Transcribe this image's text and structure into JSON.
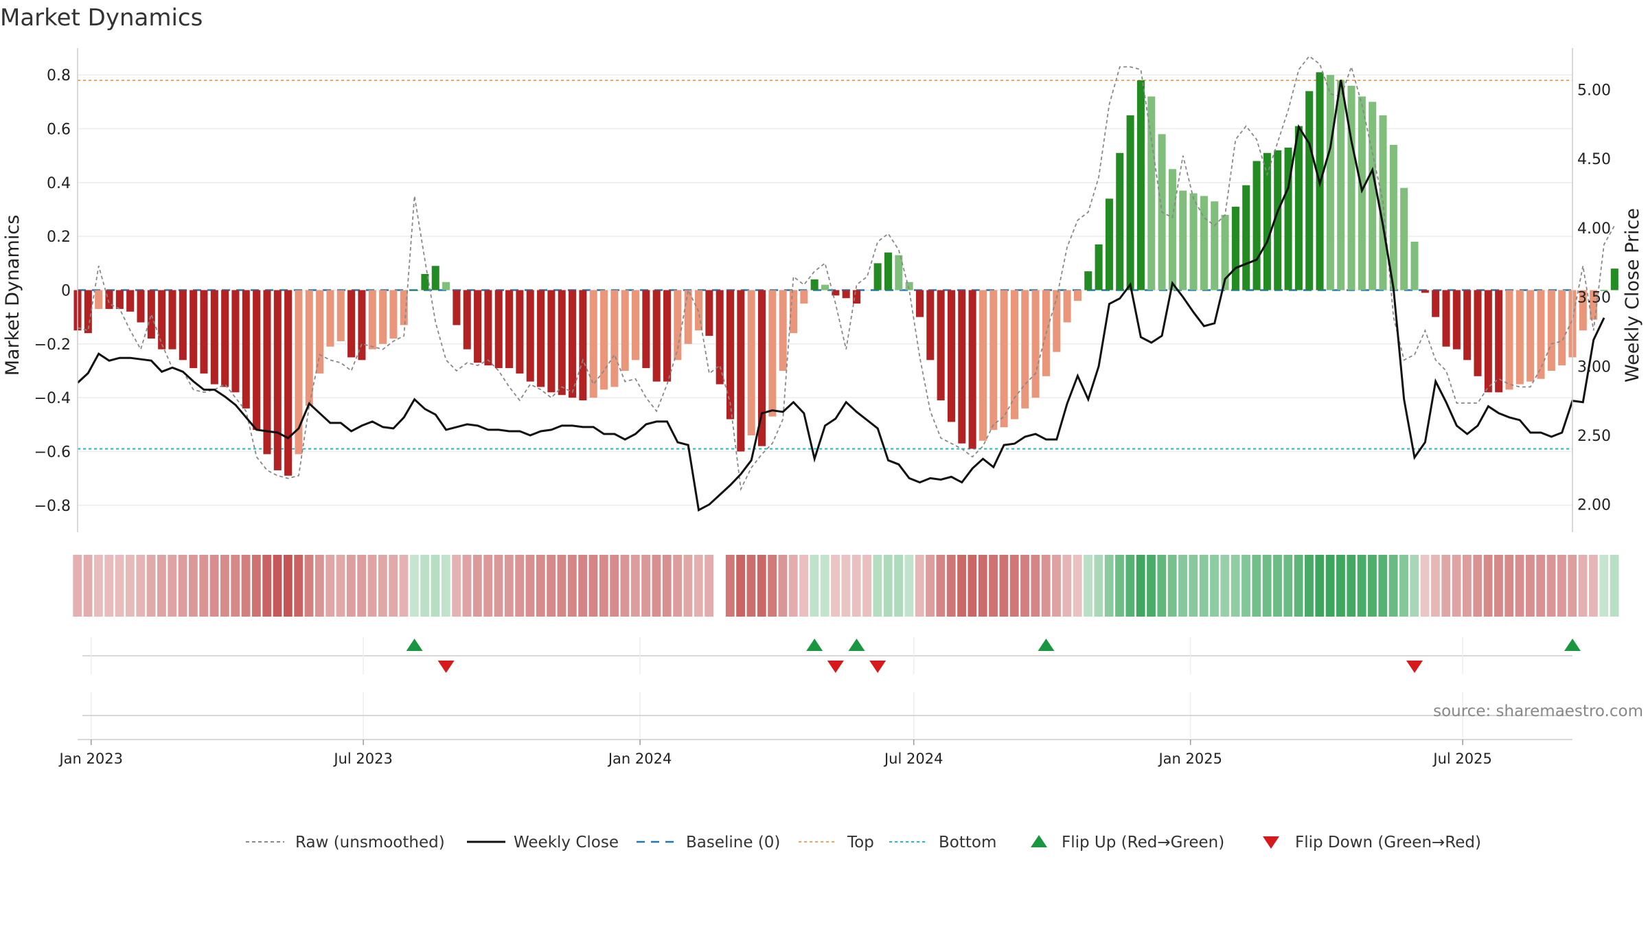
{
  "chart_data": {
    "type": "bar",
    "title": "Market Dynamics",
    "ylabel_left": "Market Dynamics",
    "ylabel_right": "Weekly Close Price",
    "ylim_left": [
      -0.9,
      0.9
    ],
    "ylim_right": [
      1.8,
      5.3
    ],
    "yticks_left": [
      0.8,
      0.6,
      0.4,
      0.2,
      0,
      -0.2,
      -0.4,
      -0.6,
      -0.8
    ],
    "ytick_labels_left": [
      "0.8",
      "0.6",
      "0.4",
      "0.2",
      "0",
      "−0.2",
      "−0.4",
      "−0.6",
      "−0.8"
    ],
    "yticks_right": [
      5.0,
      4.5,
      4.0,
      3.5,
      3.0,
      2.5,
      2.0
    ],
    "ytick_labels_right": [
      "5.00",
      "4.50",
      "4.00",
      "3.50",
      "3.00",
      "2.50",
      "2.00"
    ],
    "x_start": "2022-12-23",
    "x_end": "2025-09-12",
    "x_ticks": [
      {
        "date": "2023-01-01",
        "label": "Jan 2023"
      },
      {
        "date": "2023-07-01",
        "label": "Jul 2023"
      },
      {
        "date": "2024-01-01",
        "label": "Jan 2024"
      },
      {
        "date": "2024-07-01",
        "label": "Jul 2024"
      },
      {
        "date": "2025-01-01",
        "label": "Jan 2025"
      },
      {
        "date": "2025-07-01",
        "label": "Jul 2025"
      }
    ],
    "thresholds": {
      "baseline": 0,
      "top": 0.78,
      "bottom": -0.59
    },
    "start_date": "2022-12-23",
    "grid": true,
    "legend_position": "bottom-center",
    "legend": [
      "Raw (unsmoothed)",
      "Weekly Close",
      "Baseline (0)",
      "Top",
      "Bottom",
      "Flip Up (Red→Green)",
      "Flip Down (Green→Red)"
    ],
    "colors": {
      "strong_green": "#228b22",
      "light_green": "#7fbf7b",
      "strong_red": "#b22222",
      "light_red": "#e9967a",
      "raw": "#888888",
      "close": "#111111",
      "baseline": "#1f77b4",
      "top": "#f4a460",
      "bottom": "#17becf",
      "flip_up": "#1a9641",
      "flip_down": "#d7191c"
    },
    "dynamics": [
      -0.15,
      -0.16,
      -0.07,
      -0.07,
      -0.07,
      -0.08,
      -0.12,
      -0.18,
      -0.22,
      -0.22,
      -0.26,
      -0.29,
      -0.31,
      -0.35,
      -0.36,
      -0.38,
      -0.44,
      -0.52,
      -0.61,
      -0.67,
      -0.69,
      -0.61,
      -0.43,
      -0.31,
      -0.21,
      -0.19,
      -0.25,
      -0.26,
      -0.22,
      -0.2,
      -0.18,
      -0.13,
      0,
      0.06,
      0.09,
      0.03,
      -0.13,
      -0.22,
      -0.27,
      -0.28,
      -0.29,
      -0.29,
      -0.31,
      -0.34,
      -0.36,
      -0.38,
      -0.39,
      -0.4,
      -0.41,
      -0.4,
      -0.37,
      -0.36,
      -0.3,
      -0.26,
      -0.29,
      -0.34,
      -0.34,
      -0.26,
      -0.2,
      -0.15,
      -0.17,
      -0.35,
      -0.48,
      -0.6,
      -0.54,
      -0.58,
      -0.47,
      -0.3,
      -0.16,
      -0.05,
      0.04,
      0.02,
      -0.02,
      -0.03,
      -0.05,
      0,
      0.1,
      0.14,
      0.13,
      0.03,
      -0.1,
      -0.26,
      -0.41,
      -0.49,
      -0.57,
      -0.59,
      -0.56,
      -0.52,
      -0.51,
      -0.48,
      -0.44,
      -0.4,
      -0.32,
      -0.23,
      -0.12,
      -0.04,
      0.07,
      0.17,
      0.34,
      0.51,
      0.65,
      0.78,
      0.72,
      0.58,
      0.45,
      0.37,
      0.36,
      0.35,
      0.33,
      0.28,
      0.31,
      0.39,
      0.48,
      0.51,
      0.52,
      0.53,
      0.61,
      0.74,
      0.81,
      0.8,
      0.78,
      0.76,
      0.72,
      0.7,
      0.65,
      0.54,
      0.38,
      0.18,
      -0.01,
      -0.1,
      -0.21,
      -0.22,
      -0.26,
      -0.32,
      -0.38,
      -0.38,
      -0.37,
      -0.35,
      -0.34,
      -0.33,
      -0.3,
      -0.28,
      -0.25,
      -0.15,
      -0.11,
      0,
      0.08
    ],
    "dynamics_missing_indices": [
      75
    ],
    "raw": [
      -0.14,
      -0.15,
      0.09,
      -0.05,
      -0.07,
      -0.15,
      -0.22,
      -0.09,
      -0.2,
      -0.29,
      -0.3,
      -0.37,
      -0.38,
      -0.37,
      -0.35,
      -0.4,
      -0.45,
      -0.62,
      -0.67,
      -0.69,
      -0.7,
      -0.69,
      -0.43,
      -0.24,
      -0.26,
      -0.27,
      -0.3,
      -0.2,
      -0.21,
      -0.22,
      -0.19,
      -0.17,
      0.35,
      0.11,
      -0.12,
      -0.26,
      -0.3,
      -0.27,
      -0.28,
      -0.26,
      -0.3,
      -0.36,
      -0.41,
      -0.35,
      -0.37,
      -0.4,
      -0.36,
      -0.38,
      -0.26,
      -0.35,
      -0.3,
      -0.24,
      -0.34,
      -0.33,
      -0.4,
      -0.45,
      -0.35,
      -0.22,
      0.0,
      -0.08,
      -0.31,
      -0.28,
      -0.42,
      -0.74,
      -0.66,
      -0.61,
      -0.57,
      -0.48,
      0.05,
      0.02,
      0.07,
      0.1,
      -0.05,
      -0.22,
      0.02,
      0.05,
      0.18,
      0.21,
      0.15,
      0.0,
      -0.25,
      -0.45,
      -0.55,
      -0.57,
      -0.59,
      -0.62,
      -0.58,
      -0.5,
      -0.47,
      -0.4,
      -0.35,
      -0.31,
      -0.16,
      -0.03,
      0.16,
      0.26,
      0.29,
      0.42,
      0.69,
      0.83,
      0.83,
      0.82,
      0.56,
      0.29,
      0.27,
      0.5,
      0.34,
      0.27,
      0.24,
      0.28,
      0.56,
      0.61,
      0.56,
      0.43,
      0.55,
      0.67,
      0.82,
      0.87,
      0.84,
      0.73,
      0.72,
      0.83,
      0.69,
      0.51,
      0.33,
      -0.1,
      -0.26,
      -0.24,
      -0.15,
      -0.26,
      -0.3,
      -0.42,
      -0.42,
      -0.42,
      -0.36,
      -0.33,
      -0.35,
      -0.36,
      -0.36,
      -0.29,
      -0.2,
      -0.19,
      -0.11,
      0.09,
      -0.15,
      0.17,
      0.24
    ],
    "close": [
      2.88,
      2.95,
      3.09,
      3.04,
      3.06,
      3.06,
      3.05,
      3.04,
      2.96,
      2.99,
      2.96,
      2.89,
      2.83,
      2.83,
      2.78,
      2.72,
      2.63,
      2.54,
      2.53,
      2.52,
      2.48,
      2.55,
      2.73,
      2.66,
      2.59,
      2.59,
      2.53,
      2.57,
      2.6,
      2.56,
      2.55,
      2.63,
      2.76,
      2.69,
      2.65,
      2.54,
      2.56,
      2.58,
      2.57,
      2.54,
      2.54,
      2.53,
      2.53,
      2.5,
      2.53,
      2.54,
      2.57,
      2.57,
      2.56,
      2.56,
      2.51,
      2.51,
      2.47,
      2.51,
      2.58,
      2.6,
      2.6,
      2.45,
      2.43,
      1.96,
      2.0,
      2.07,
      2.14,
      2.22,
      2.32,
      2.66,
      2.68,
      2.67,
      2.74,
      2.66,
      2.33,
      2.57,
      2.62,
      2.74,
      2.67,
      2.61,
      2.55,
      2.32,
      2.29,
      2.19,
      2.16,
      2.19,
      2.18,
      2.2,
      2.16,
      2.26,
      2.33,
      2.27,
      2.43,
      2.44,
      2.49,
      2.51,
      2.47,
      2.47,
      2.73,
      2.93,
      2.76,
      3.0,
      3.45,
      3.49,
      3.59,
      3.21,
      3.17,
      3.22,
      3.6,
      3.5,
      3.39,
      3.29,
      3.31,
      3.63,
      3.71,
      3.74,
      3.77,
      3.9,
      4.12,
      4.29,
      4.73,
      4.61,
      4.32,
      4.58,
      5.07,
      4.63,
      4.27,
      4.42,
      4.02,
      3.56,
      2.76,
      2.34,
      2.45,
      2.89,
      2.74,
      2.57,
      2.51,
      2.57,
      2.71,
      2.66,
      2.63,
      2.61,
      2.52,
      2.52,
      2.49,
      2.52,
      2.75,
      2.74,
      3.19,
      3.35
    ],
    "flips_up_dates": [
      "2023-08-04",
      "2024-04-26",
      "2024-05-24",
      "2024-09-27",
      "2025-09-12"
    ],
    "flips_down_dates": [
      "2023-08-25",
      "2024-05-10",
      "2024-06-07",
      "2025-05-30"
    ],
    "heat_strip_gap_dates": [
      "2024-02-23"
    ]
  },
  "source_text": "source: sharemaestro.com"
}
